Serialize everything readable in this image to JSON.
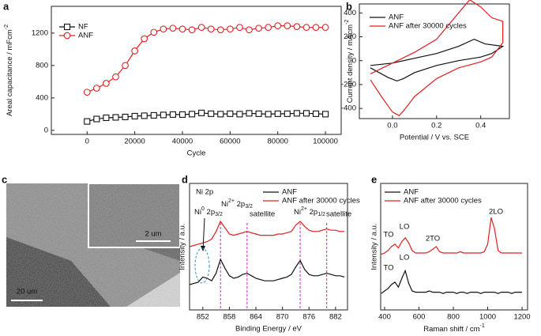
{
  "chart_data": [
    {
      "panel": "a",
      "type": "line",
      "xlabel": "Cycle",
      "ylabel": [
        "Areal capacitance / mFcm",
        "-2"
      ],
      "x": [
        0,
        4000,
        8000,
        12000,
        16000,
        20000,
        24000,
        28000,
        32000,
        36000,
        40000,
        44000,
        48000,
        52000,
        56000,
        60000,
        64000,
        68000,
        72000,
        76000,
        80000,
        84000,
        88000,
        92000,
        96000,
        100000
      ],
      "series": [
        {
          "name": "NF",
          "color": "#111111",
          "marker": "square",
          "values": [
            110,
            140,
            155,
            160,
            165,
            175,
            180,
            185,
            190,
            195,
            195,
            200,
            215,
            205,
            200,
            205,
            200,
            210,
            205,
            200,
            205,
            205,
            210,
            210,
            205,
            200
          ]
        },
        {
          "name": "ANF",
          "color": "#e02020",
          "marker": "circle",
          "values": [
            470,
            520,
            580,
            660,
            800,
            980,
            1130,
            1210,
            1250,
            1260,
            1250,
            1240,
            1270,
            1250,
            1240,
            1250,
            1270,
            1240,
            1260,
            1270,
            1290,
            1290,
            1280,
            1270,
            1270,
            1270
          ]
        }
      ],
      "xlim": [
        -15000,
        106600
      ],
      "xticks": [
        0,
        20000,
        40000,
        60000,
        80000,
        100000
      ],
      "ylim": [
        -50,
        1530
      ],
      "yticks": [
        0,
        400,
        800,
        1200
      ]
    },
    {
      "panel": "b",
      "type": "line",
      "xlabel": "Potential / V vs. SCE",
      "ylabel": [
        "Current density / mAcm",
        "-2"
      ],
      "series": [
        {
          "name": "ANF",
          "color": "#111111",
          "x": [
            -0.1,
            0,
            0.1,
            0.2,
            0.3,
            0.37,
            0.42,
            0.5,
            0.45,
            0.4,
            0.3,
            0.2,
            0.1,
            0.05,
            0.02,
            -0.02,
            -0.1
          ],
          "values": [
            -40,
            -20,
            20,
            60,
            120,
            180,
            140,
            120,
            60,
            30,
            0,
            -40,
            -100,
            -150,
            -170,
            -140,
            -60
          ]
        },
        {
          "name": "ANF after 30000 cycles",
          "color": "#e02020",
          "x": [
            -0.1,
            0,
            0.1,
            0.2,
            0.3,
            0.35,
            0.4,
            0.45,
            0.5,
            0.5,
            0.45,
            0.4,
            0.3,
            0.2,
            0.1,
            0.05,
            0.03,
            0,
            -0.05,
            -0.1
          ],
          "values": [
            -110,
            -20,
            70,
            180,
            400,
            510,
            450,
            360,
            330,
            150,
            30,
            -10,
            -60,
            -150,
            -300,
            -420,
            -460,
            -430,
            -300,
            -160
          ]
        }
      ],
      "xlim": [
        -0.15,
        0.53
      ],
      "xticks": [
        {
          "value": 0,
          "label": "0.0"
        },
        0.2,
        0.4
      ],
      "ylim": [
        -485,
        475
      ],
      "yticks": [
        -400,
        -200,
        0,
        200,
        400
      ]
    },
    {
      "panel": "c",
      "type": "image",
      "scale_bars": [
        "2 um",
        "20 um"
      ]
    },
    {
      "panel": "d",
      "type": "line",
      "xlabel": "Binding Energy / eV",
      "ylabel": "Intensity / a.u.",
      "x": [
        849,
        850,
        851,
        852,
        853,
        854,
        855,
        856,
        857,
        858,
        859,
        860,
        861,
        862,
        863,
        864,
        865,
        866,
        867,
        868,
        869,
        870,
        871,
        872,
        873,
        874,
        875,
        876,
        877,
        878,
        879,
        880,
        881,
        882,
        883,
        884
      ],
      "series": [
        {
          "name": "ANF",
          "color": "#111111",
          "values": [
            20,
            21,
            22,
            26,
            25,
            23,
            29,
            40,
            33,
            27,
            25,
            26,
            28,
            29,
            27,
            25,
            24,
            23,
            23,
            23,
            24,
            25,
            26,
            28,
            34,
            39,
            32,
            28,
            27,
            27,
            28,
            29,
            28,
            27,
            27,
            26
          ]
        },
        {
          "name": "ANF after 30000 cycles",
          "color": "#e02020",
          "values": [
            50,
            51,
            52,
            53,
            54,
            56,
            62,
            70,
            65,
            60,
            59,
            60,
            61,
            62,
            61,
            60,
            59,
            59,
            59,
            59,
            60,
            60,
            61,
            62,
            67,
            70,
            66,
            63,
            62,
            62,
            63,
            64,
            63,
            63,
            62,
            62
          ]
        }
      ],
      "reference_lines": [
        856,
        862,
        874,
        880
      ],
      "reference_color": "#d020d0",
      "annotations": [
        "Ni 2p",
        [
          "Ni",
          "0",
          " 2p",
          "3/2"
        ],
        [
          "Ni",
          "2+",
          " 2p",
          "3/2"
        ],
        "satellite",
        [
          "Ni",
          "2+",
          " 2p",
          "1/2"
        ],
        "satellite"
      ],
      "xlim": [
        849,
        884.7
      ],
      "xticks": [
        852,
        858,
        864,
        870,
        876,
        882
      ],
      "ylim": [
        0,
        100
      ]
    },
    {
      "panel": "e",
      "type": "line",
      "xlabel": [
        "Raman shift / cm",
        "-1"
      ],
      "ylabel": "Intensity / a.u.",
      "x": [
        380,
        400,
        420,
        440,
        460,
        480,
        500,
        520,
        540,
        560,
        580,
        600,
        620,
        640,
        660,
        680,
        700,
        720,
        740,
        760,
        780,
        800,
        820,
        840,
        860,
        880,
        900,
        920,
        940,
        960,
        980,
        1000,
        1020,
        1040,
        1060,
        1080,
        1100,
        1120,
        1140,
        1160,
        1180,
        1200
      ],
      "series": [
        {
          "name": "ANF",
          "color": "#111111",
          "values": [
            13,
            15,
            17,
            20,
            22,
            18,
            25,
            31,
            21,
            15,
            14,
            14,
            14,
            14,
            15,
            14,
            14,
            14,
            13,
            14,
            14,
            14,
            13,
            14,
            14,
            13,
            14,
            14,
            14,
            13,
            14,
            14,
            14,
            14,
            13,
            14,
            14,
            14,
            13,
            14,
            14,
            14
          ]
        },
        {
          "name": "ANF after 30000 cycles",
          "color": "#e02020",
          "values": [
            44,
            45,
            47,
            50,
            52,
            49,
            54,
            57,
            53,
            47,
            45,
            45,
            45,
            45,
            46,
            48,
            50,
            46,
            45,
            45,
            45,
            45,
            45,
            46,
            45,
            45,
            45,
            45,
            45,
            45,
            46,
            52,
            73,
            64,
            47,
            45,
            45,
            45,
            45,
            45,
            45,
            45
          ]
        }
      ],
      "annotations": [
        "TO",
        "LO",
        "2TO",
        "2LO",
        "TO",
        "LO"
      ],
      "xlim": [
        377,
        1232
      ],
      "xticks": [
        400,
        600,
        800,
        1000,
        1200
      ],
      "ylim": [
        0,
        100
      ]
    }
  ]
}
